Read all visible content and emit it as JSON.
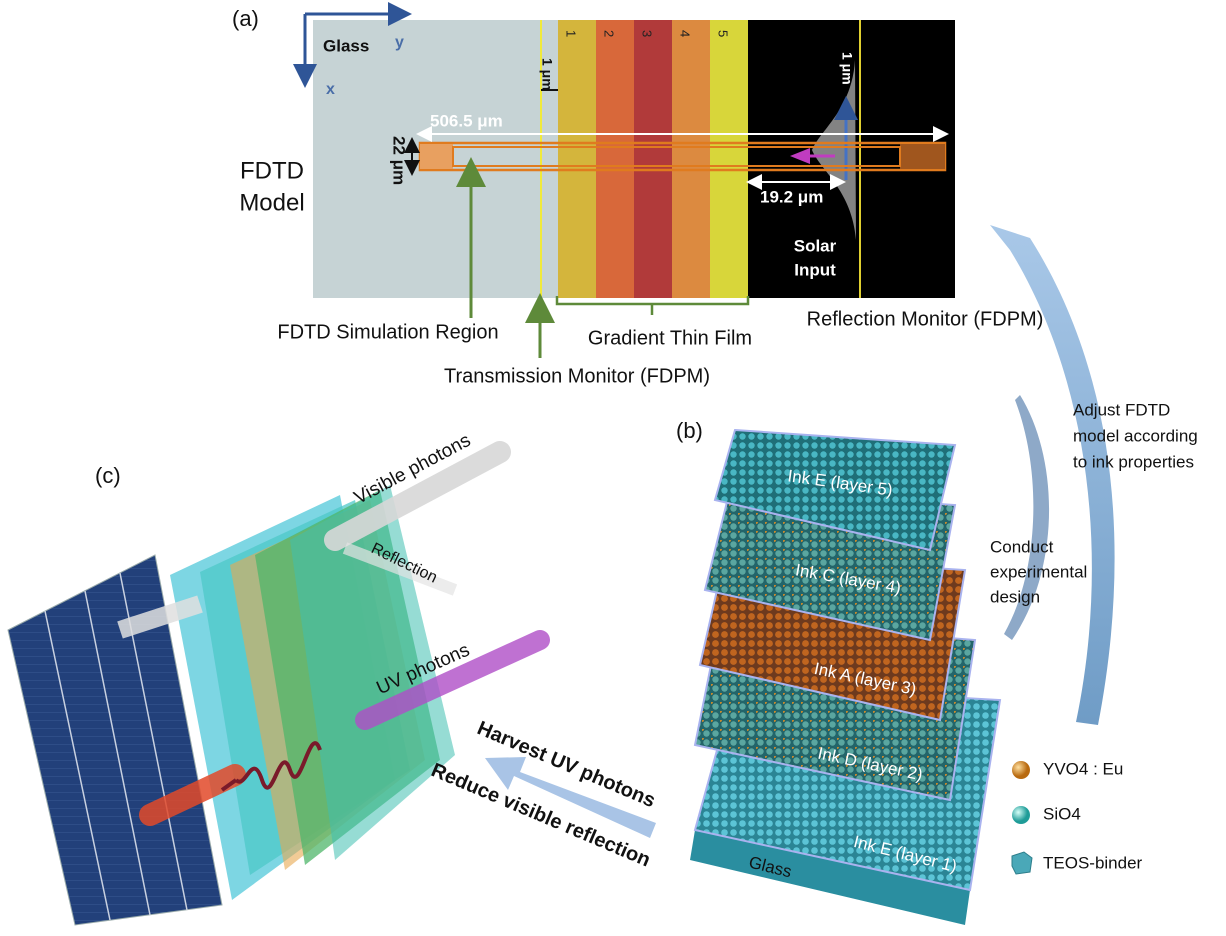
{
  "panel_a": {
    "label": "(a)",
    "title_lines": [
      "FDTD",
      "Model"
    ],
    "glass": "Glass",
    "axis_y": "y",
    "axis_x": "x",
    "layers": [
      "1",
      "2",
      "3",
      "4",
      "5"
    ],
    "gap_left": "1 μm",
    "gap_right": "1 μm",
    "length": "506.5 μm",
    "width": "22 μm",
    "distance": "19.2 μm",
    "source_lines": [
      "Solar",
      "Input"
    ],
    "callouts": {
      "simulation_region": "FDTD Simulation Region",
      "transmission_monitor": "Transmission Monitor (FDPM)",
      "gradient_film": "Gradient Thin Film",
      "reflection_monitor": "Reflection Monitor (FDPM)"
    }
  },
  "panel_b": {
    "label": "(b)",
    "layers": [
      "Ink E (layer 5)",
      "Ink C (layer 4)",
      "Ink A (layer 3)",
      "Ink D (layer 2)",
      "Ink E (layer 1)"
    ],
    "substrate": "Glass",
    "legend": [
      "YVO4 : Eu",
      "SiO4",
      "TEOS-binder"
    ]
  },
  "arrows": {
    "adjust_lines": [
      "Adjust FDTD",
      "model according",
      "to ink properties"
    ],
    "conduct_lines": [
      "Conduct",
      "experimental",
      "design"
    ]
  },
  "panel_c": {
    "label": "(c)",
    "visible": "Visible photons",
    "reflection": "Reflection",
    "uv": "UV photons",
    "goal_lines": [
      "Harvest UV photons",
      "Reduce visible reflection"
    ]
  }
}
